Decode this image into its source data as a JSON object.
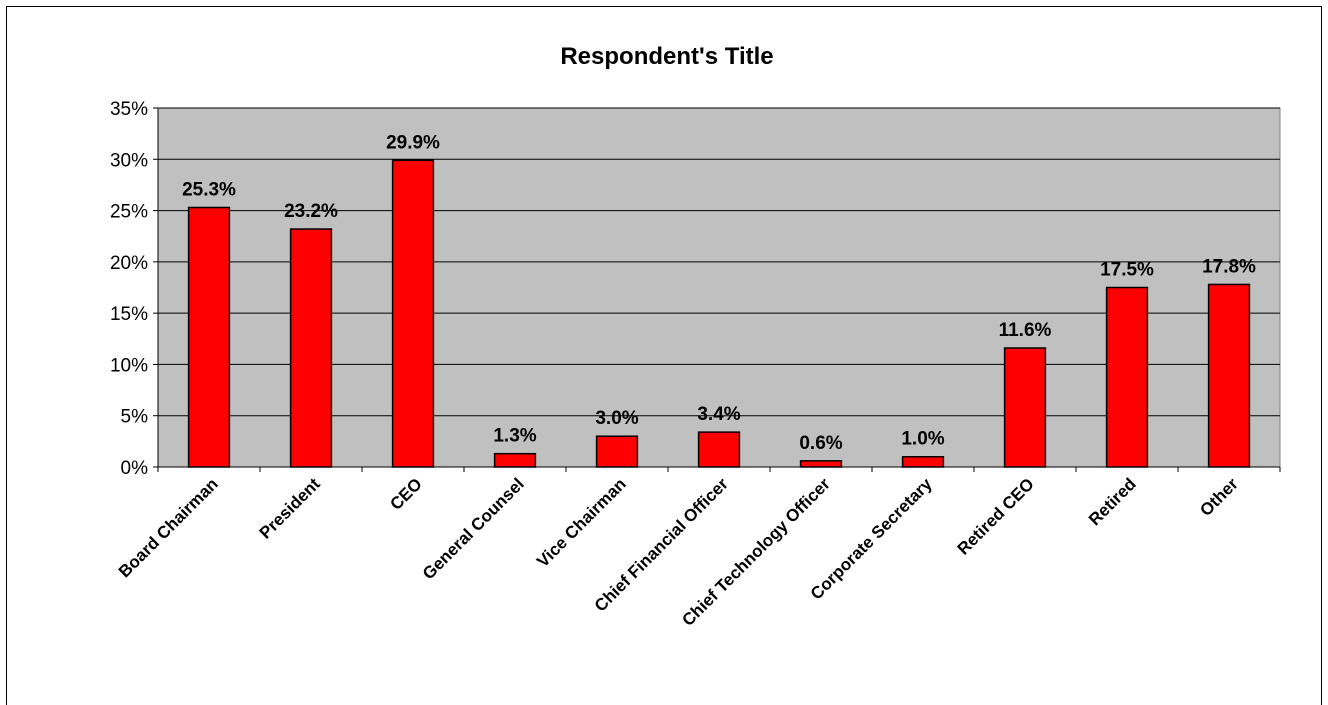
{
  "chart_data": {
    "type": "bar",
    "title": "Respondent's Title",
    "xlabel": "",
    "ylabel": "",
    "categories": [
      "Board Chairman",
      "President",
      "CEO",
      "General Counsel",
      "Vice Chairman",
      "Chief Financial Officer",
      "Chief Technology Officer",
      "Corporate Secretary",
      "Retired CEO",
      "Retired",
      "Other"
    ],
    "values": [
      25.3,
      23.2,
      29.9,
      1.3,
      3.0,
      3.4,
      0.6,
      1.0,
      11.6,
      17.5,
      17.8
    ],
    "value_labels": [
      "25.3%",
      "23.2%",
      "29.9%",
      "1.3%",
      "3.0%",
      "3.4%",
      "0.6%",
      "1.0%",
      "11.6%",
      "17.5%",
      "17.8%"
    ],
    "y_ticks": [
      0,
      5,
      10,
      15,
      20,
      25,
      30,
      35
    ],
    "y_tick_labels": [
      "0%",
      "5%",
      "10%",
      "15%",
      "20%",
      "25%",
      "30%",
      "35%"
    ],
    "ylim": [
      0,
      35
    ],
    "grid": true,
    "legend": "none",
    "colors": {
      "bar_fill": "#ff0000",
      "bar_stroke": "#000000",
      "plot_background": "#c0c0c0",
      "gridline": "#000000",
      "page_background": "#ffffff"
    }
  }
}
